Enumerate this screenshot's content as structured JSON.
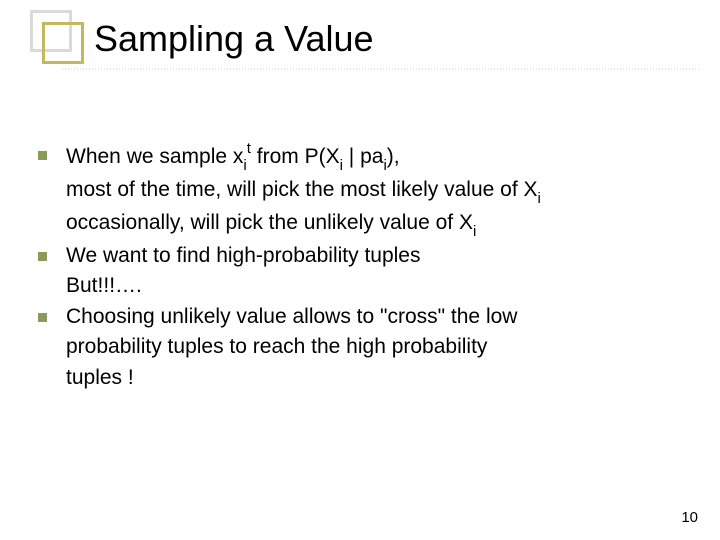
{
  "slide": {
    "title": "Sampling a Value",
    "page_number": "10",
    "bullet_color": "#8a9a5b",
    "corner_back_color": "#dadada",
    "corner_front_color": "#c4b85e",
    "text_color": "#000000",
    "title_fontsize": 36,
    "body_fontsize": 21
  },
  "lines": {
    "l1a": "When we sample x",
    "l1b": "t",
    "l1c": " from P(X",
    "l1d": " | pa",
    "l1e": "),",
    "l2a": "most of the time, will pick the most likely value of X",
    "l3a": "occasionally, will pick the unlikely value of X",
    "l4": "We want to find high-probability tuples",
    "l5": "But!!!….",
    "l6": "Choosing unlikely value allows to \"cross\" the low",
    "l7": "probability tuples to reach the high probability",
    "l8": "tuples !",
    "sub_i": "i"
  }
}
